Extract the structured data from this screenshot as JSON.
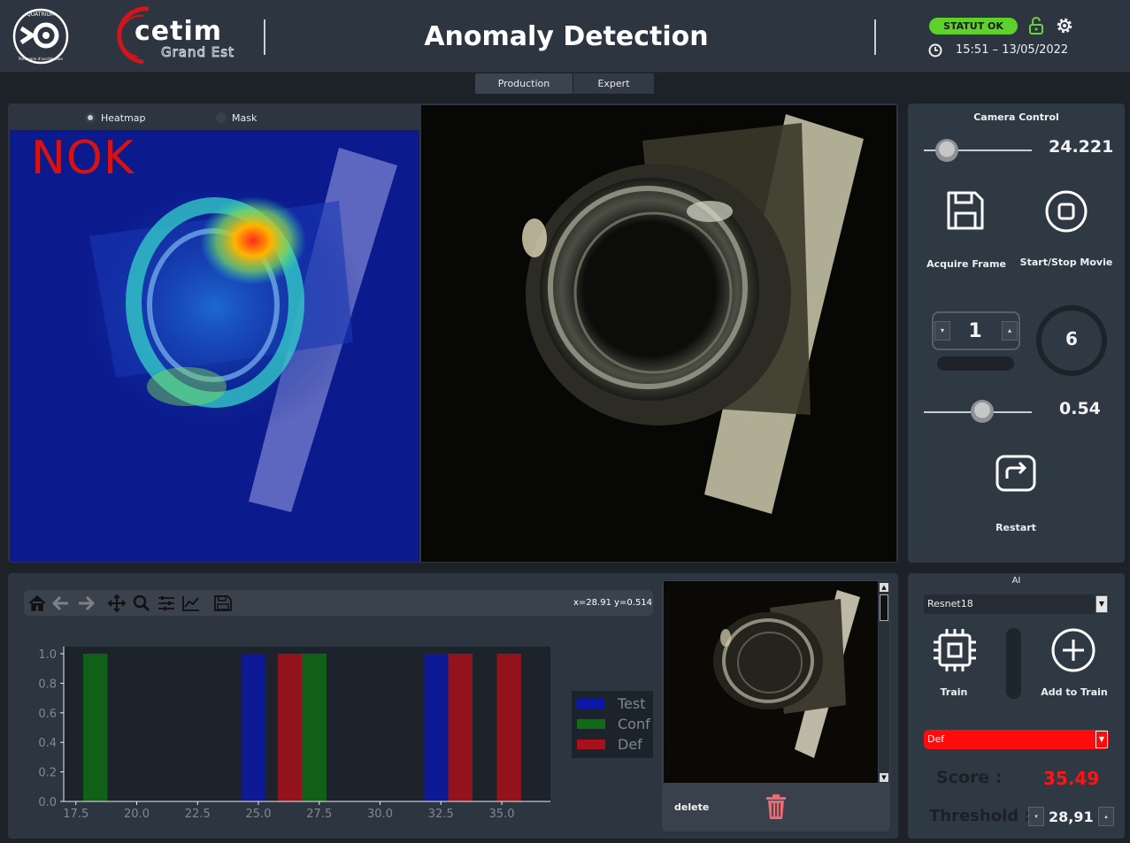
{
  "header": {
    "title": "Anomaly Detection",
    "status": "STATUT OK",
    "datetime": "15:51 – 13/05/2022",
    "quatrium_logo_text": "QUATRIUM",
    "quatrium_tagline": "Partenaire d'accélération",
    "cetim_logo_text": "cetim",
    "cetim_logo_sub": "Grand Est"
  },
  "tabs": [
    "Production",
    "Expert"
  ],
  "view": {
    "radio_heatmap": "Heatmap",
    "radio_mask": "Mask",
    "heatmap_selected": true,
    "overlay_label": "NOK"
  },
  "camera_control": {
    "title": "Camera Control",
    "exposure_value": "24.221",
    "exposure_level": 0.15,
    "acquire_label": "Acquire Frame",
    "movie_label": "Start/Stop Movie",
    "spin_value": "1",
    "dial_value": "6",
    "gain_value": "0.54",
    "gain_level": 0.54,
    "restart_label": "Restart"
  },
  "toolbar": {
    "icons": [
      "home-icon",
      "back-arrow-icon",
      "forward-arrow-icon",
      "pan-icon",
      "zoom-icon",
      "configure-subplots-icon",
      "edit-axis-icon",
      "save-icon"
    ],
    "coords": "x=28.91 y=0.514"
  },
  "chart_data": {
    "type": "bar",
    "xlim": [
      17.0,
      37.0
    ],
    "ylim": [
      0.0,
      1.0
    ],
    "xticks": [
      "17.5",
      "20.0",
      "22.5",
      "25.0",
      "27.5",
      "30.0",
      "32.5",
      "35.0"
    ],
    "yticks": [
      "0.0",
      "0.2",
      "0.4",
      "0.6",
      "0.8",
      "1.0"
    ],
    "bar_width": 1.0,
    "series": [
      {
        "name": "Test",
        "color": "#0a17a8",
        "x": [
          24.8,
          32.3
        ],
        "values": [
          1.0,
          1.0
        ]
      },
      {
        "name": "Conf",
        "color": "#0f6b16",
        "x": [
          18.3,
          27.3
        ],
        "values": [
          1.0,
          1.0
        ]
      },
      {
        "name": "Def",
        "color": "#a8111b",
        "x": [
          26.3,
          33.3,
          35.3
        ],
        "values": [
          1.0,
          1.0,
          1.0
        ]
      }
    ],
    "legend": "right"
  },
  "gallery": {
    "delete_label": "delete"
  },
  "ai": {
    "title": "AI",
    "model": "Resnet18",
    "train_label": "Train",
    "add_label": "Add to Train",
    "class_value": "Def",
    "score_label": "Score :",
    "score_value": "35.49",
    "threshold_label": "Threshold :",
    "threshold_value": "28,91"
  },
  "colors": {
    "accent_status": "#5fd12c",
    "nok_red": "#d61212",
    "score_red": "#ff1414"
  }
}
